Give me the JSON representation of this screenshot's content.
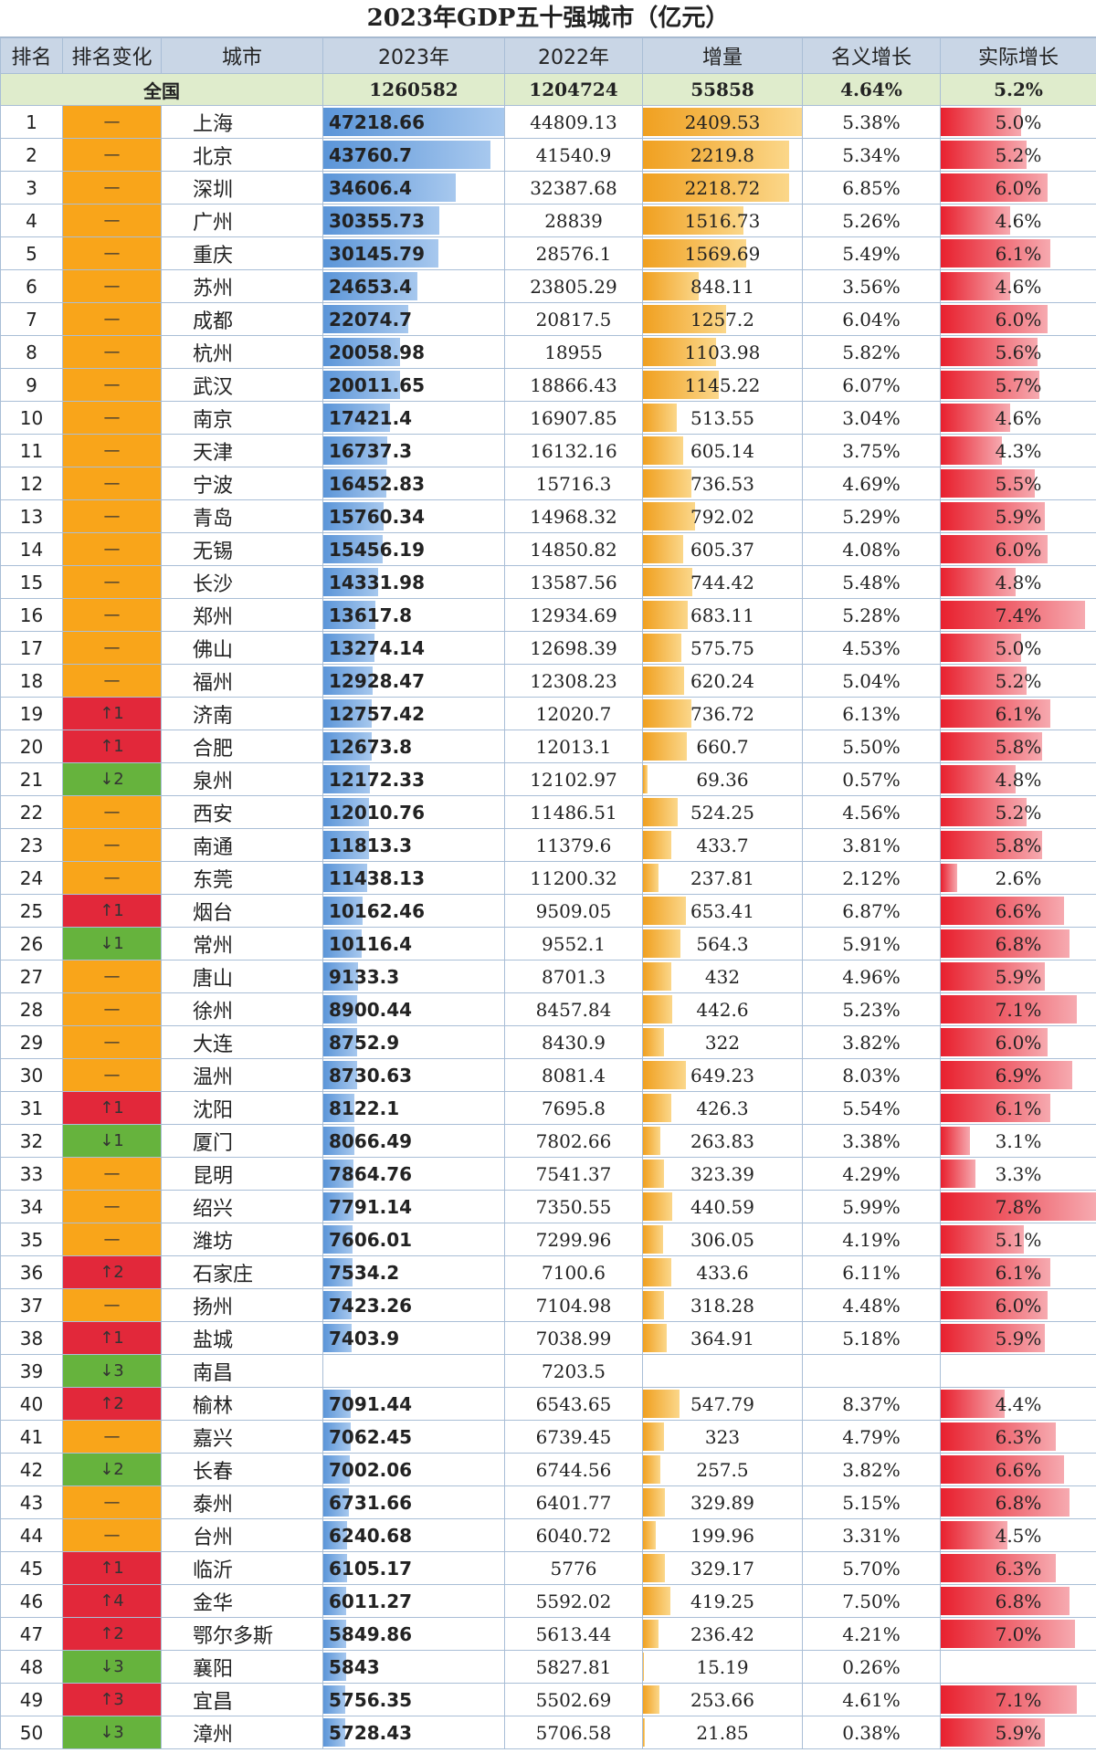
{
  "title": "2023年GDP五十强城市（亿元）",
  "headers": [
    "排名",
    "排名变化",
    "城市",
    "2023年",
    "2022年",
    "增量",
    "名义增长",
    "实际增长"
  ],
  "total": {
    "label": "全国",
    "gdp2023": "1260582",
    "gdp2022": "1204724",
    "increase": "55858",
    "nominal": "4.64%",
    "real": "5.2%"
  },
  "colors": {
    "same": "#f9a51a",
    "up": "#e2283a",
    "down": "#66b33d",
    "gdp_bar": "#5b95d8",
    "increase_bar": "#f0a020",
    "real_bar": "#e8202e"
  },
  "rows": [
    {
      "rank": "1",
      "change": "—",
      "ct": "same",
      "city": "上海",
      "gdp2023": "47218.66",
      "gdp2022": "44809.13",
      "increase": "2409.53",
      "nominal": "5.38%",
      "real": "5.0%"
    },
    {
      "rank": "2",
      "change": "—",
      "ct": "same",
      "city": "北京",
      "gdp2023": "43760.7",
      "gdp2022": "41540.9",
      "increase": "2219.8",
      "nominal": "5.34%",
      "real": "5.2%"
    },
    {
      "rank": "3",
      "change": "—",
      "ct": "same",
      "city": "深圳",
      "gdp2023": "34606.4",
      "gdp2022": "32387.68",
      "increase": "2218.72",
      "nominal": "6.85%",
      "real": "6.0%"
    },
    {
      "rank": "4",
      "change": "—",
      "ct": "same",
      "city": "广州",
      "gdp2023": "30355.73",
      "gdp2022": "28839",
      "increase": "1516.73",
      "nominal": "5.26%",
      "real": "4.6%"
    },
    {
      "rank": "5",
      "change": "—",
      "ct": "same",
      "city": "重庆",
      "gdp2023": "30145.79",
      "gdp2022": "28576.1",
      "increase": "1569.69",
      "nominal": "5.49%",
      "real": "6.1%"
    },
    {
      "rank": "6",
      "change": "—",
      "ct": "same",
      "city": "苏州",
      "gdp2023": "24653.4",
      "gdp2022": "23805.29",
      "increase": "848.11",
      "nominal": "3.56%",
      "real": "4.6%"
    },
    {
      "rank": "7",
      "change": "—",
      "ct": "same",
      "city": "成都",
      "gdp2023": "22074.7",
      "gdp2022": "20817.5",
      "increase": "1257.2",
      "nominal": "6.04%",
      "real": "6.0%"
    },
    {
      "rank": "8",
      "change": "—",
      "ct": "same",
      "city": "杭州",
      "gdp2023": "20058.98",
      "gdp2022": "18955",
      "increase": "1103.98",
      "nominal": "5.82%",
      "real": "5.6%"
    },
    {
      "rank": "9",
      "change": "—",
      "ct": "same",
      "city": "武汉",
      "gdp2023": "20011.65",
      "gdp2022": "18866.43",
      "increase": "1145.22",
      "nominal": "6.07%",
      "real": "5.7%"
    },
    {
      "rank": "10",
      "change": "—",
      "ct": "same",
      "city": "南京",
      "gdp2023": "17421.4",
      "gdp2022": "16907.85",
      "increase": "513.55",
      "nominal": "3.04%",
      "real": "4.6%"
    },
    {
      "rank": "11",
      "change": "—",
      "ct": "same",
      "city": "天津",
      "gdp2023": "16737.3",
      "gdp2022": "16132.16",
      "increase": "605.14",
      "nominal": "3.75%",
      "real": "4.3%"
    },
    {
      "rank": "12",
      "change": "—",
      "ct": "same",
      "city": "宁波",
      "gdp2023": "16452.83",
      "gdp2022": "15716.3",
      "increase": "736.53",
      "nominal": "4.69%",
      "real": "5.5%"
    },
    {
      "rank": "13",
      "change": "—",
      "ct": "same",
      "city": "青岛",
      "gdp2023": "15760.34",
      "gdp2022": "14968.32",
      "increase": "792.02",
      "nominal": "5.29%",
      "real": "5.9%"
    },
    {
      "rank": "14",
      "change": "—",
      "ct": "same",
      "city": "无锡",
      "gdp2023": "15456.19",
      "gdp2022": "14850.82",
      "increase": "605.37",
      "nominal": "4.08%",
      "real": "6.0%"
    },
    {
      "rank": "15",
      "change": "—",
      "ct": "same",
      "city": "长沙",
      "gdp2023": "14331.98",
      "gdp2022": "13587.56",
      "increase": "744.42",
      "nominal": "5.48%",
      "real": "4.8%"
    },
    {
      "rank": "16",
      "change": "—",
      "ct": "same",
      "city": "郑州",
      "gdp2023": "13617.8",
      "gdp2022": "12934.69",
      "increase": "683.11",
      "nominal": "5.28%",
      "real": "7.4%"
    },
    {
      "rank": "17",
      "change": "—",
      "ct": "same",
      "city": "佛山",
      "gdp2023": "13274.14",
      "gdp2022": "12698.39",
      "increase": "575.75",
      "nominal": "4.53%",
      "real": "5.0%"
    },
    {
      "rank": "18",
      "change": "—",
      "ct": "same",
      "city": "福州",
      "gdp2023": "12928.47",
      "gdp2022": "12308.23",
      "increase": "620.24",
      "nominal": "5.04%",
      "real": "5.2%"
    },
    {
      "rank": "19",
      "change": "↑1",
      "ct": "up",
      "city": "济南",
      "gdp2023": "12757.42",
      "gdp2022": "12020.7",
      "increase": "736.72",
      "nominal": "6.13%",
      "real": "6.1%"
    },
    {
      "rank": "20",
      "change": "↑1",
      "ct": "up",
      "city": "合肥",
      "gdp2023": "12673.8",
      "gdp2022": "12013.1",
      "increase": "660.7",
      "nominal": "5.50%",
      "real": "5.8%"
    },
    {
      "rank": "21",
      "change": "↓2",
      "ct": "down",
      "city": "泉州",
      "gdp2023": "12172.33",
      "gdp2022": "12102.97",
      "increase": "69.36",
      "nominal": "0.57%",
      "real": "4.8%"
    },
    {
      "rank": "22",
      "change": "—",
      "ct": "same",
      "city": "西安",
      "gdp2023": "12010.76",
      "gdp2022": "11486.51",
      "increase": "524.25",
      "nominal": "4.56%",
      "real": "5.2%"
    },
    {
      "rank": "23",
      "change": "—",
      "ct": "same",
      "city": "南通",
      "gdp2023": "11813.3",
      "gdp2022": "11379.6",
      "increase": "433.7",
      "nominal": "3.81%",
      "real": "5.8%"
    },
    {
      "rank": "24",
      "change": "—",
      "ct": "same",
      "city": "东莞",
      "gdp2023": "11438.13",
      "gdp2022": "11200.32",
      "increase": "237.81",
      "nominal": "2.12%",
      "real": "2.6%"
    },
    {
      "rank": "25",
      "change": "↑1",
      "ct": "up",
      "city": "烟台",
      "gdp2023": "10162.46",
      "gdp2022": "9509.05",
      "increase": "653.41",
      "nominal": "6.87%",
      "real": "6.6%"
    },
    {
      "rank": "26",
      "change": "↓1",
      "ct": "down",
      "city": "常州",
      "gdp2023": "10116.4",
      "gdp2022": "9552.1",
      "increase": "564.3",
      "nominal": "5.91%",
      "real": "6.8%"
    },
    {
      "rank": "27",
      "change": "—",
      "ct": "same",
      "city": "唐山",
      "gdp2023": "9133.3",
      "gdp2022": "8701.3",
      "increase": "432",
      "nominal": "4.96%",
      "real": "5.9%"
    },
    {
      "rank": "28",
      "change": "—",
      "ct": "same",
      "city": "徐州",
      "gdp2023": "8900.44",
      "gdp2022": "8457.84",
      "increase": "442.6",
      "nominal": "5.23%",
      "real": "7.1%"
    },
    {
      "rank": "29",
      "change": "—",
      "ct": "same",
      "city": "大连",
      "gdp2023": "8752.9",
      "gdp2022": "8430.9",
      "increase": "322",
      "nominal": "3.82%",
      "real": "6.0%"
    },
    {
      "rank": "30",
      "change": "—",
      "ct": "same",
      "city": "温州",
      "gdp2023": "8730.63",
      "gdp2022": "8081.4",
      "increase": "649.23",
      "nominal": "8.03%",
      "real": "6.9%"
    },
    {
      "rank": "31",
      "change": "↑1",
      "ct": "up",
      "city": "沈阳",
      "gdp2023": "8122.1",
      "gdp2022": "7695.8",
      "increase": "426.3",
      "nominal": "5.54%",
      "real": "6.1%"
    },
    {
      "rank": "32",
      "change": "↓1",
      "ct": "down",
      "city": "厦门",
      "gdp2023": "8066.49",
      "gdp2022": "7802.66",
      "increase": "263.83",
      "nominal": "3.38%",
      "real": "3.1%"
    },
    {
      "rank": "33",
      "change": "—",
      "ct": "same",
      "city": "昆明",
      "gdp2023": "7864.76",
      "gdp2022": "7541.37",
      "increase": "323.39",
      "nominal": "4.29%",
      "real": "3.3%"
    },
    {
      "rank": "34",
      "change": "—",
      "ct": "same",
      "city": "绍兴",
      "gdp2023": "7791.14",
      "gdp2022": "7350.55",
      "increase": "440.59",
      "nominal": "5.99%",
      "real": "7.8%"
    },
    {
      "rank": "35",
      "change": "—",
      "ct": "same",
      "city": "潍坊",
      "gdp2023": "7606.01",
      "gdp2022": "7299.96",
      "increase": "306.05",
      "nominal": "4.19%",
      "real": "5.1%"
    },
    {
      "rank": "36",
      "change": "↑2",
      "ct": "up",
      "city": "石家庄",
      "gdp2023": "7534.2",
      "gdp2022": "7100.6",
      "increase": "433.6",
      "nominal": "6.11%",
      "real": "6.1%"
    },
    {
      "rank": "37",
      "change": "—",
      "ct": "same",
      "city": "扬州",
      "gdp2023": "7423.26",
      "gdp2022": "7104.98",
      "increase": "318.28",
      "nominal": "4.48%",
      "real": "6.0%"
    },
    {
      "rank": "38",
      "change": "↑1",
      "ct": "up",
      "city": "盐城",
      "gdp2023": "7403.9",
      "gdp2022": "7038.99",
      "increase": "364.91",
      "nominal": "5.18%",
      "real": "5.9%"
    },
    {
      "rank": "39",
      "change": "↓3",
      "ct": "down",
      "city": "南昌",
      "gdp2023": "",
      "gdp2022": "7203.5",
      "increase": "",
      "nominal": "",
      "real": ""
    },
    {
      "rank": "40",
      "change": "↑2",
      "ct": "up",
      "city": "榆林",
      "gdp2023": "7091.44",
      "gdp2022": "6543.65",
      "increase": "547.79",
      "nominal": "8.37%",
      "real": "4.4%"
    },
    {
      "rank": "41",
      "change": "—",
      "ct": "same",
      "city": "嘉兴",
      "gdp2023": "7062.45",
      "gdp2022": "6739.45",
      "increase": "323",
      "nominal": "4.79%",
      "real": "6.3%"
    },
    {
      "rank": "42",
      "change": "↓2",
      "ct": "down",
      "city": "长春",
      "gdp2023": "7002.06",
      "gdp2022": "6744.56",
      "increase": "257.5",
      "nominal": "3.82%",
      "real": "6.6%"
    },
    {
      "rank": "43",
      "change": "—",
      "ct": "same",
      "city": "泰州",
      "gdp2023": "6731.66",
      "gdp2022": "6401.77",
      "increase": "329.89",
      "nominal": "5.15%",
      "real": "6.8%"
    },
    {
      "rank": "44",
      "change": "—",
      "ct": "same",
      "city": "台州",
      "gdp2023": "6240.68",
      "gdp2022": "6040.72",
      "increase": "199.96",
      "nominal": "3.31%",
      "real": "4.5%"
    },
    {
      "rank": "45",
      "change": "↑1",
      "ct": "up",
      "city": "临沂",
      "gdp2023": "6105.17",
      "gdp2022": "5776",
      "increase": "329.17",
      "nominal": "5.70%",
      "real": "6.3%"
    },
    {
      "rank": "46",
      "change": "↑4",
      "ct": "up",
      "city": "金华",
      "gdp2023": "6011.27",
      "gdp2022": "5592.02",
      "increase": "419.25",
      "nominal": "7.50%",
      "real": "6.8%"
    },
    {
      "rank": "47",
      "change": "↑2",
      "ct": "up",
      "city": "鄂尔多斯",
      "gdp2023": "5849.86",
      "gdp2022": "5613.44",
      "increase": "236.42",
      "nominal": "4.21%",
      "real": "7.0%"
    },
    {
      "rank": "48",
      "change": "↓3",
      "ct": "down",
      "city": "襄阳",
      "gdp2023": "5843",
      "gdp2022": "5827.81",
      "increase": "15.19",
      "nominal": "0.26%",
      "real": ""
    },
    {
      "rank": "49",
      "change": "↑3",
      "ct": "up",
      "city": "宜昌",
      "gdp2023": "5756.35",
      "gdp2022": "5502.69",
      "increase": "253.66",
      "nominal": "4.61%",
      "real": "7.1%"
    },
    {
      "rank": "50",
      "change": "↓3",
      "ct": "down",
      "city": "漳州",
      "gdp2023": "5728.43",
      "gdp2022": "5706.58",
      "increase": "21.85",
      "nominal": "0.38%",
      "real": "5.9%"
    }
  ]
}
